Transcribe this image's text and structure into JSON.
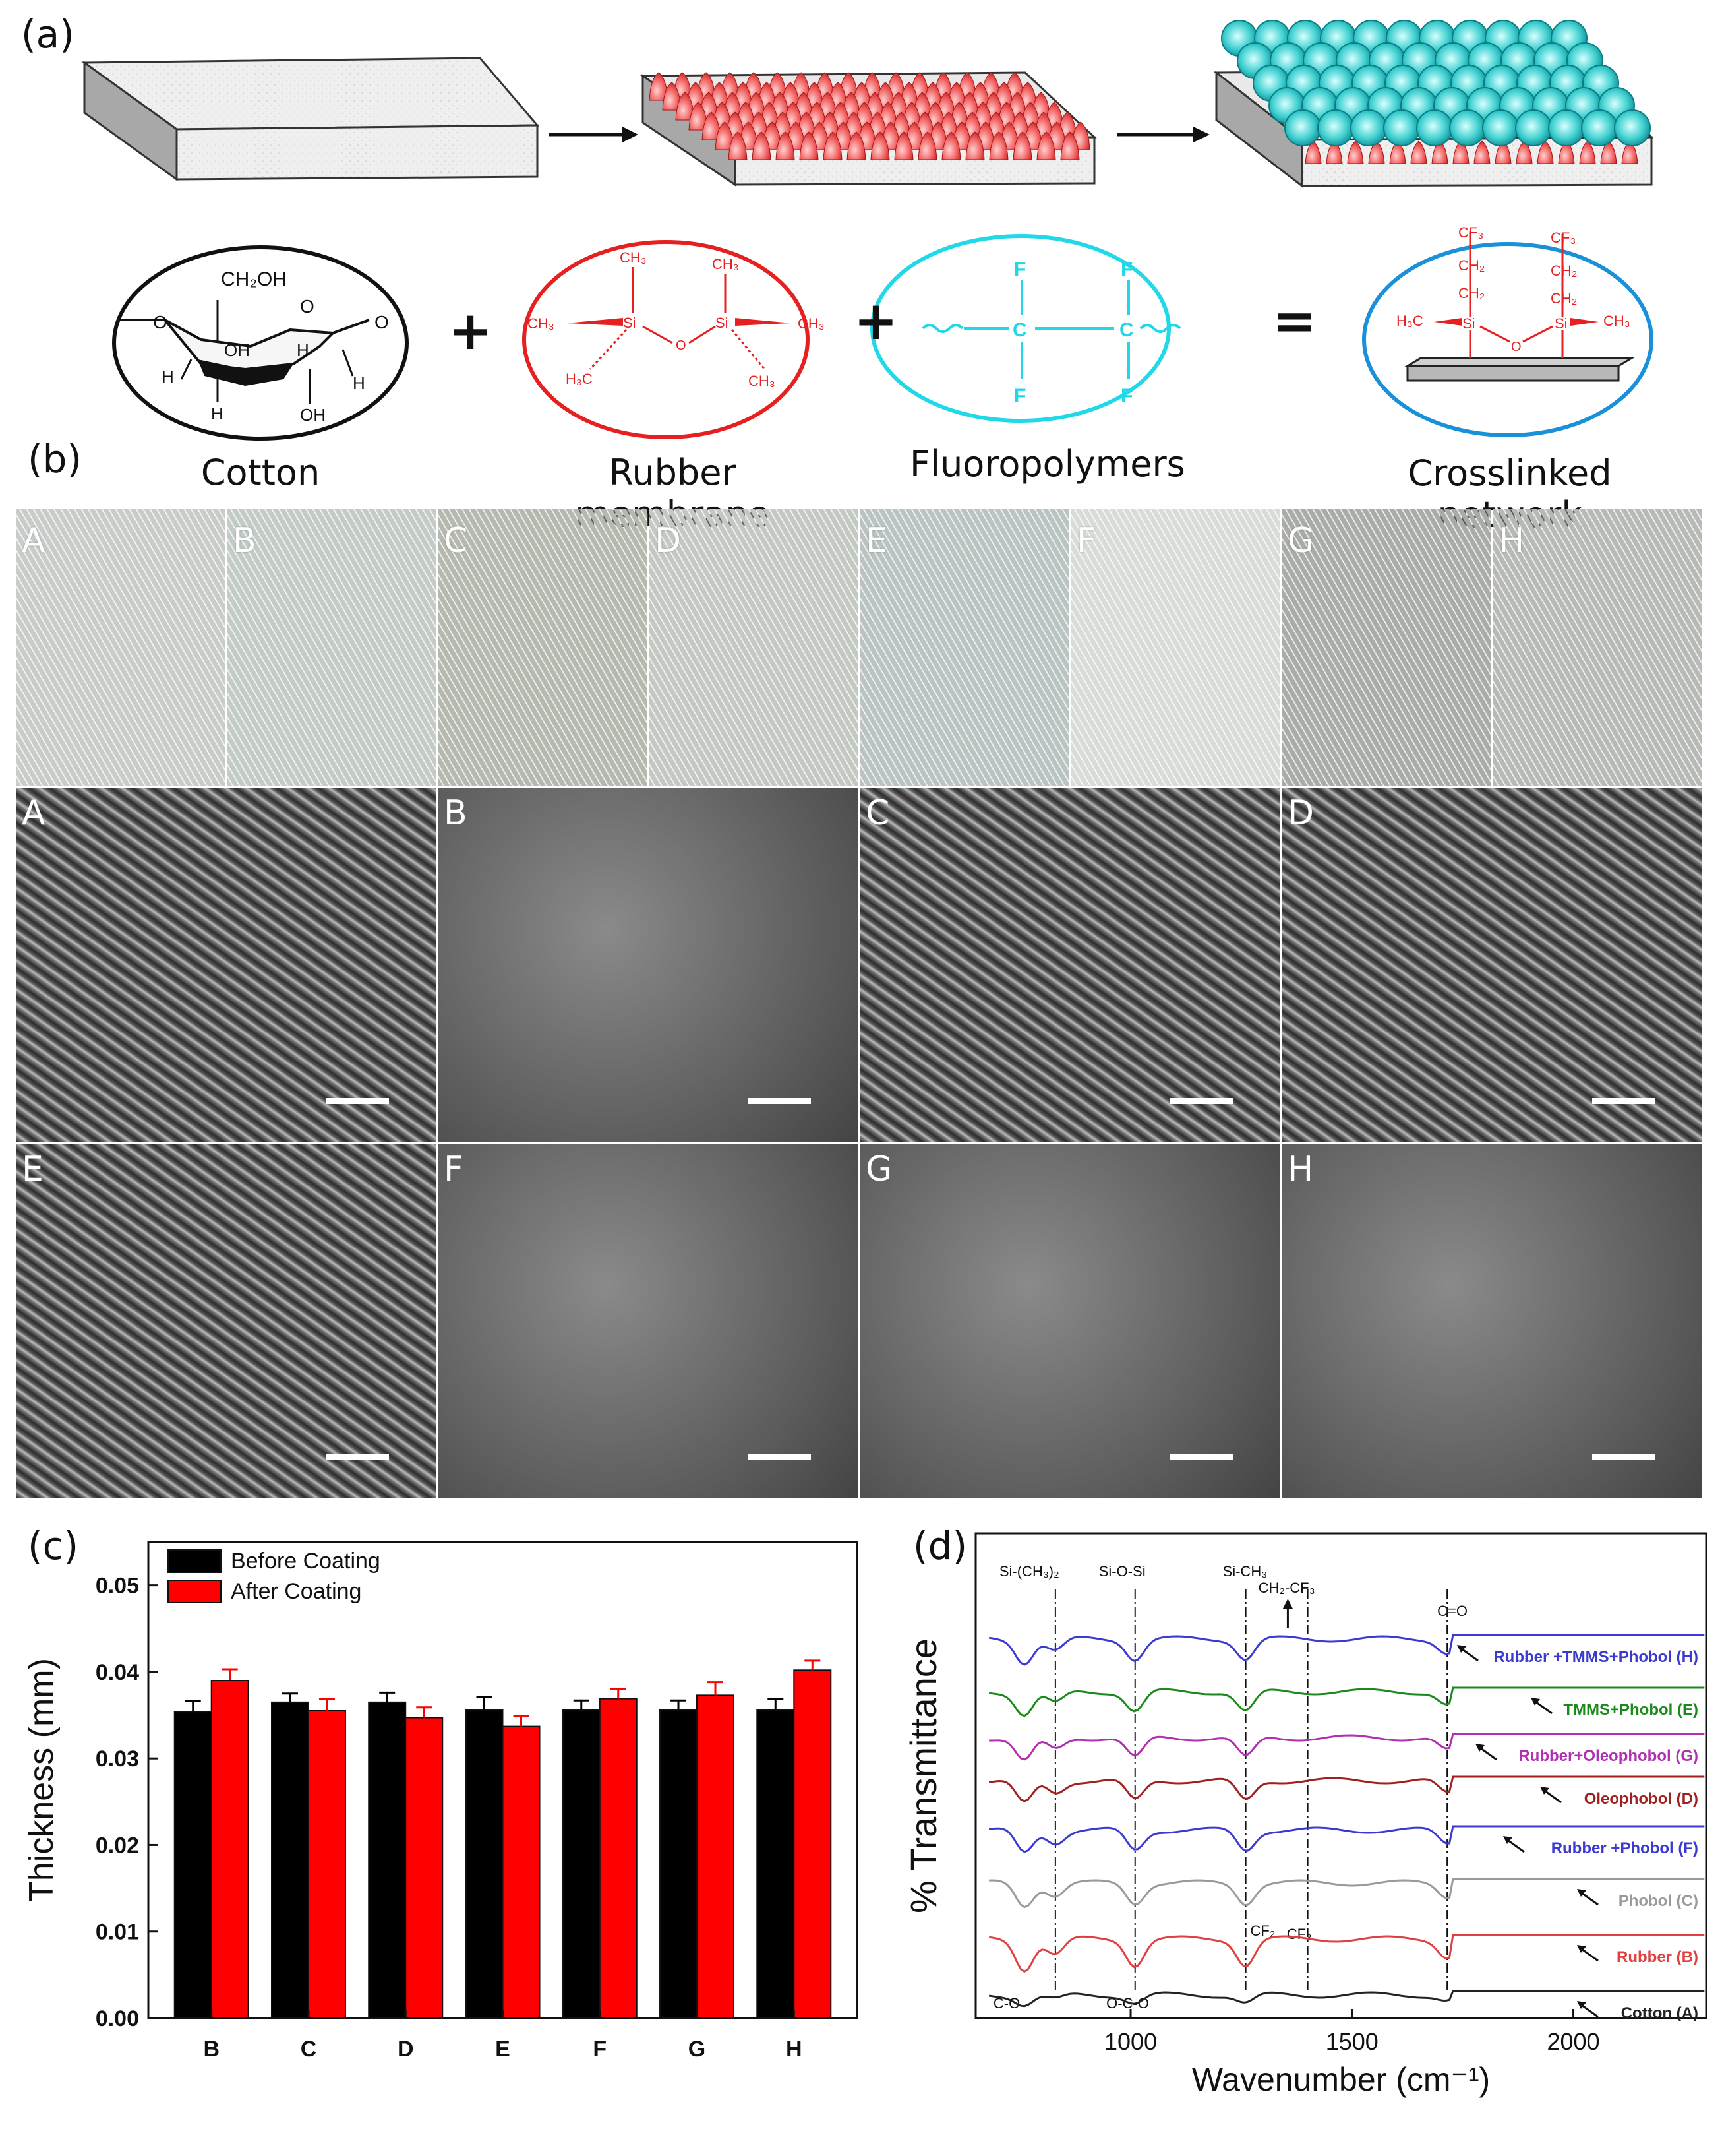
{
  "panel_a": {
    "label": "(a)",
    "components": [
      {
        "name": "Cotton"
      },
      {
        "name": "Rubber membrane"
      },
      {
        "name": "Fluoropolymers"
      },
      {
        "name": "Crosslinked network"
      }
    ],
    "operators": [
      "+",
      "+",
      "="
    ],
    "cotton_labels": {
      "ch2oh": "CH₂OH",
      "o": "O",
      "oh1": "OH",
      "oh2": "OH",
      "h": "H"
    },
    "rubber_labels": {
      "ch3": "CH₃",
      "si": "Si",
      "o": "O",
      "h3c": "H₃C"
    },
    "fluoro_labels": {
      "f": "F",
      "c": "C"
    },
    "network_labels": {
      "cf3": "CF₃",
      "ch2": "CH₂",
      "si": "Si",
      "o": "O",
      "h3c": "H₃C",
      "ch3": "CH₃"
    }
  },
  "panel_b": {
    "label": "(b)",
    "photos": [
      "A",
      "B",
      "C",
      "D",
      "E",
      "F",
      "G",
      "H"
    ],
    "photo_colors": [
      "#c8ccc8",
      "#c3cbc6",
      "#b4b8ae",
      "#c4c8c2",
      "#b9c3c1",
      "#d8dcd6",
      "#a9aca6",
      "#b7bab4"
    ],
    "sem_labels": [
      "A",
      "B",
      "C",
      "D",
      "E",
      "F",
      "G",
      "H"
    ]
  },
  "panel_c": {
    "label": "(c)",
    "chart_data": {
      "type": "bar",
      "title": "",
      "xlabel": "",
      "ylabel": "Thickness (mm)",
      "categories": [
        "B",
        "C",
        "D",
        "E",
        "F",
        "G",
        "H"
      ],
      "ylim": [
        0,
        0.055
      ],
      "yticks": [
        "0.00",
        "0.01",
        "0.02",
        "0.03",
        "0.04",
        "0.05"
      ],
      "series": [
        {
          "name": "Before Coating",
          "color": "#000000",
          "values": [
            0.0354,
            0.0365,
            0.0365,
            0.0356,
            0.0356,
            0.0356,
            0.0356
          ],
          "errors": [
            0.0012,
            0.001,
            0.0011,
            0.0015,
            0.0011,
            0.0011,
            0.0013
          ]
        },
        {
          "name": "After Coating",
          "color": "#ff0000",
          "values": [
            0.039,
            0.0355,
            0.0347,
            0.0337,
            0.0369,
            0.0373,
            0.0402
          ],
          "errors": [
            0.0013,
            0.0014,
            0.0012,
            0.0012,
            0.0011,
            0.0015,
            0.0011
          ]
        }
      ],
      "legend": "top-left"
    }
  },
  "panel_d": {
    "label": "(d)",
    "chart_data": {
      "type": "line",
      "title": "",
      "xlabel": "Wavenumber (cm⁻¹)",
      "ylabel": "% Transmittance",
      "xlim": [
        650,
        2300
      ],
      "xticks": [
        "1000",
        "1500",
        "2000"
      ],
      "peak_labels": [
        "Si-(CH₃)₂",
        "Si-O-Si",
        "Si-CH₃",
        "CH₂-CF₃",
        "C=O",
        "CF₂",
        "CF₃",
        "C-O",
        "O-C-O"
      ],
      "peak_positions": [
        830,
        1010,
        1260,
        1400,
        1715
      ],
      "series": [
        {
          "name": "Rubber +TMMS+Phobol (H)",
          "color": "#3a3ad0"
        },
        {
          "name": "TMMS+Phobol (E)",
          "color": "#1a8a1a"
        },
        {
          "name": "Rubber+Oleophobol (G)",
          "color": "#b030b0"
        },
        {
          "name": "Oleophobol (D)",
          "color": "#a02020"
        },
        {
          "name": "Rubber +Phobol (F)",
          "color": "#3a3ad0"
        },
        {
          "name": "Phobol (C)",
          "color": "#9a9a9a"
        },
        {
          "name": "Rubber (B)",
          "color": "#e04040"
        },
        {
          "name": "Cotton (A)",
          "color": "#222222"
        }
      ]
    }
  }
}
